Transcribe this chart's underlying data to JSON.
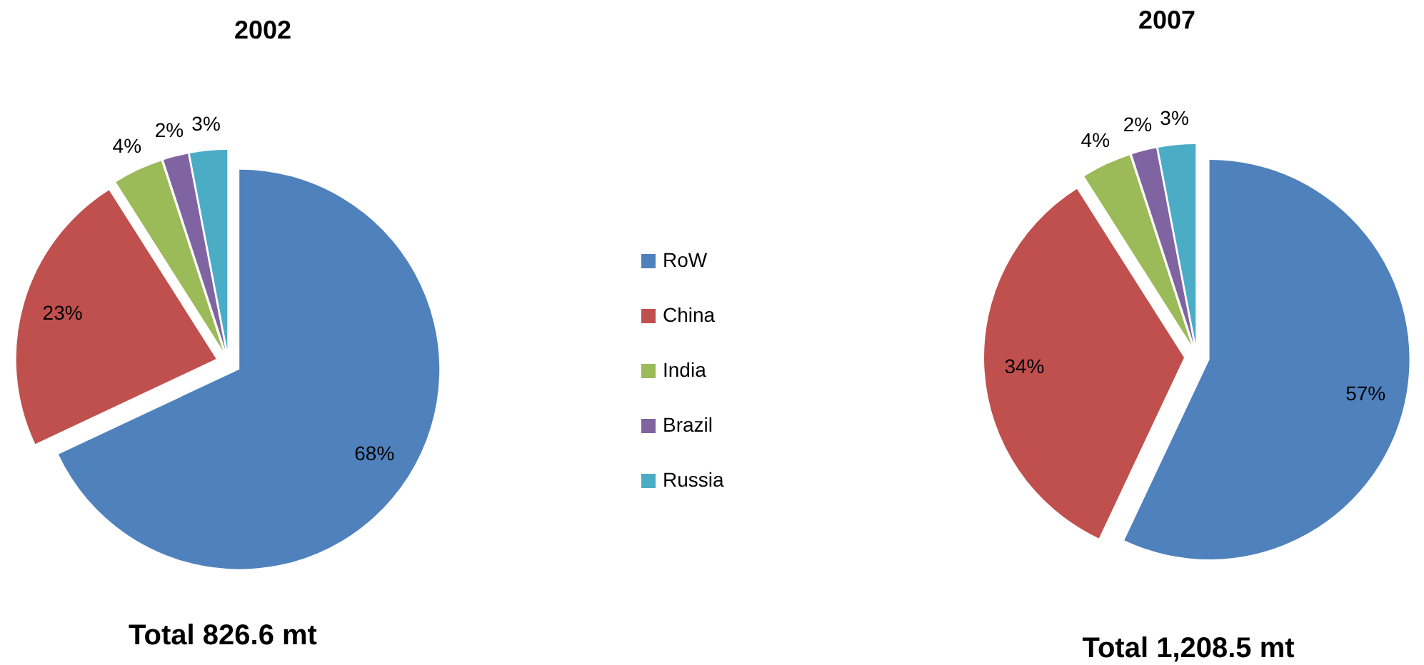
{
  "chart_data": {
    "type": "pie",
    "categories": [
      "RoW",
      "China",
      "India",
      "Brazil",
      "Russia"
    ],
    "colors": [
      "#4f81bd",
      "#c0504d",
      "#9bbb59",
      "#8064a2",
      "#4bacc6"
    ],
    "series": [
      {
        "name": "2002",
        "values": [
          68,
          23,
          4,
          2,
          3
        ],
        "value_labels": [
          "68%",
          "23%",
          "4%",
          "2%",
          "3%"
        ]
      },
      {
        "name": "2007",
        "values": [
          57,
          34,
          4,
          2,
          3
        ],
        "value_labels": [
          "57%",
          "34%",
          "4%",
          "2%",
          "3%"
        ]
      }
    ],
    "legend": "right",
    "annotations": [
      "Total 826.6 mt",
      "Total 1,208.5 mt"
    ]
  }
}
